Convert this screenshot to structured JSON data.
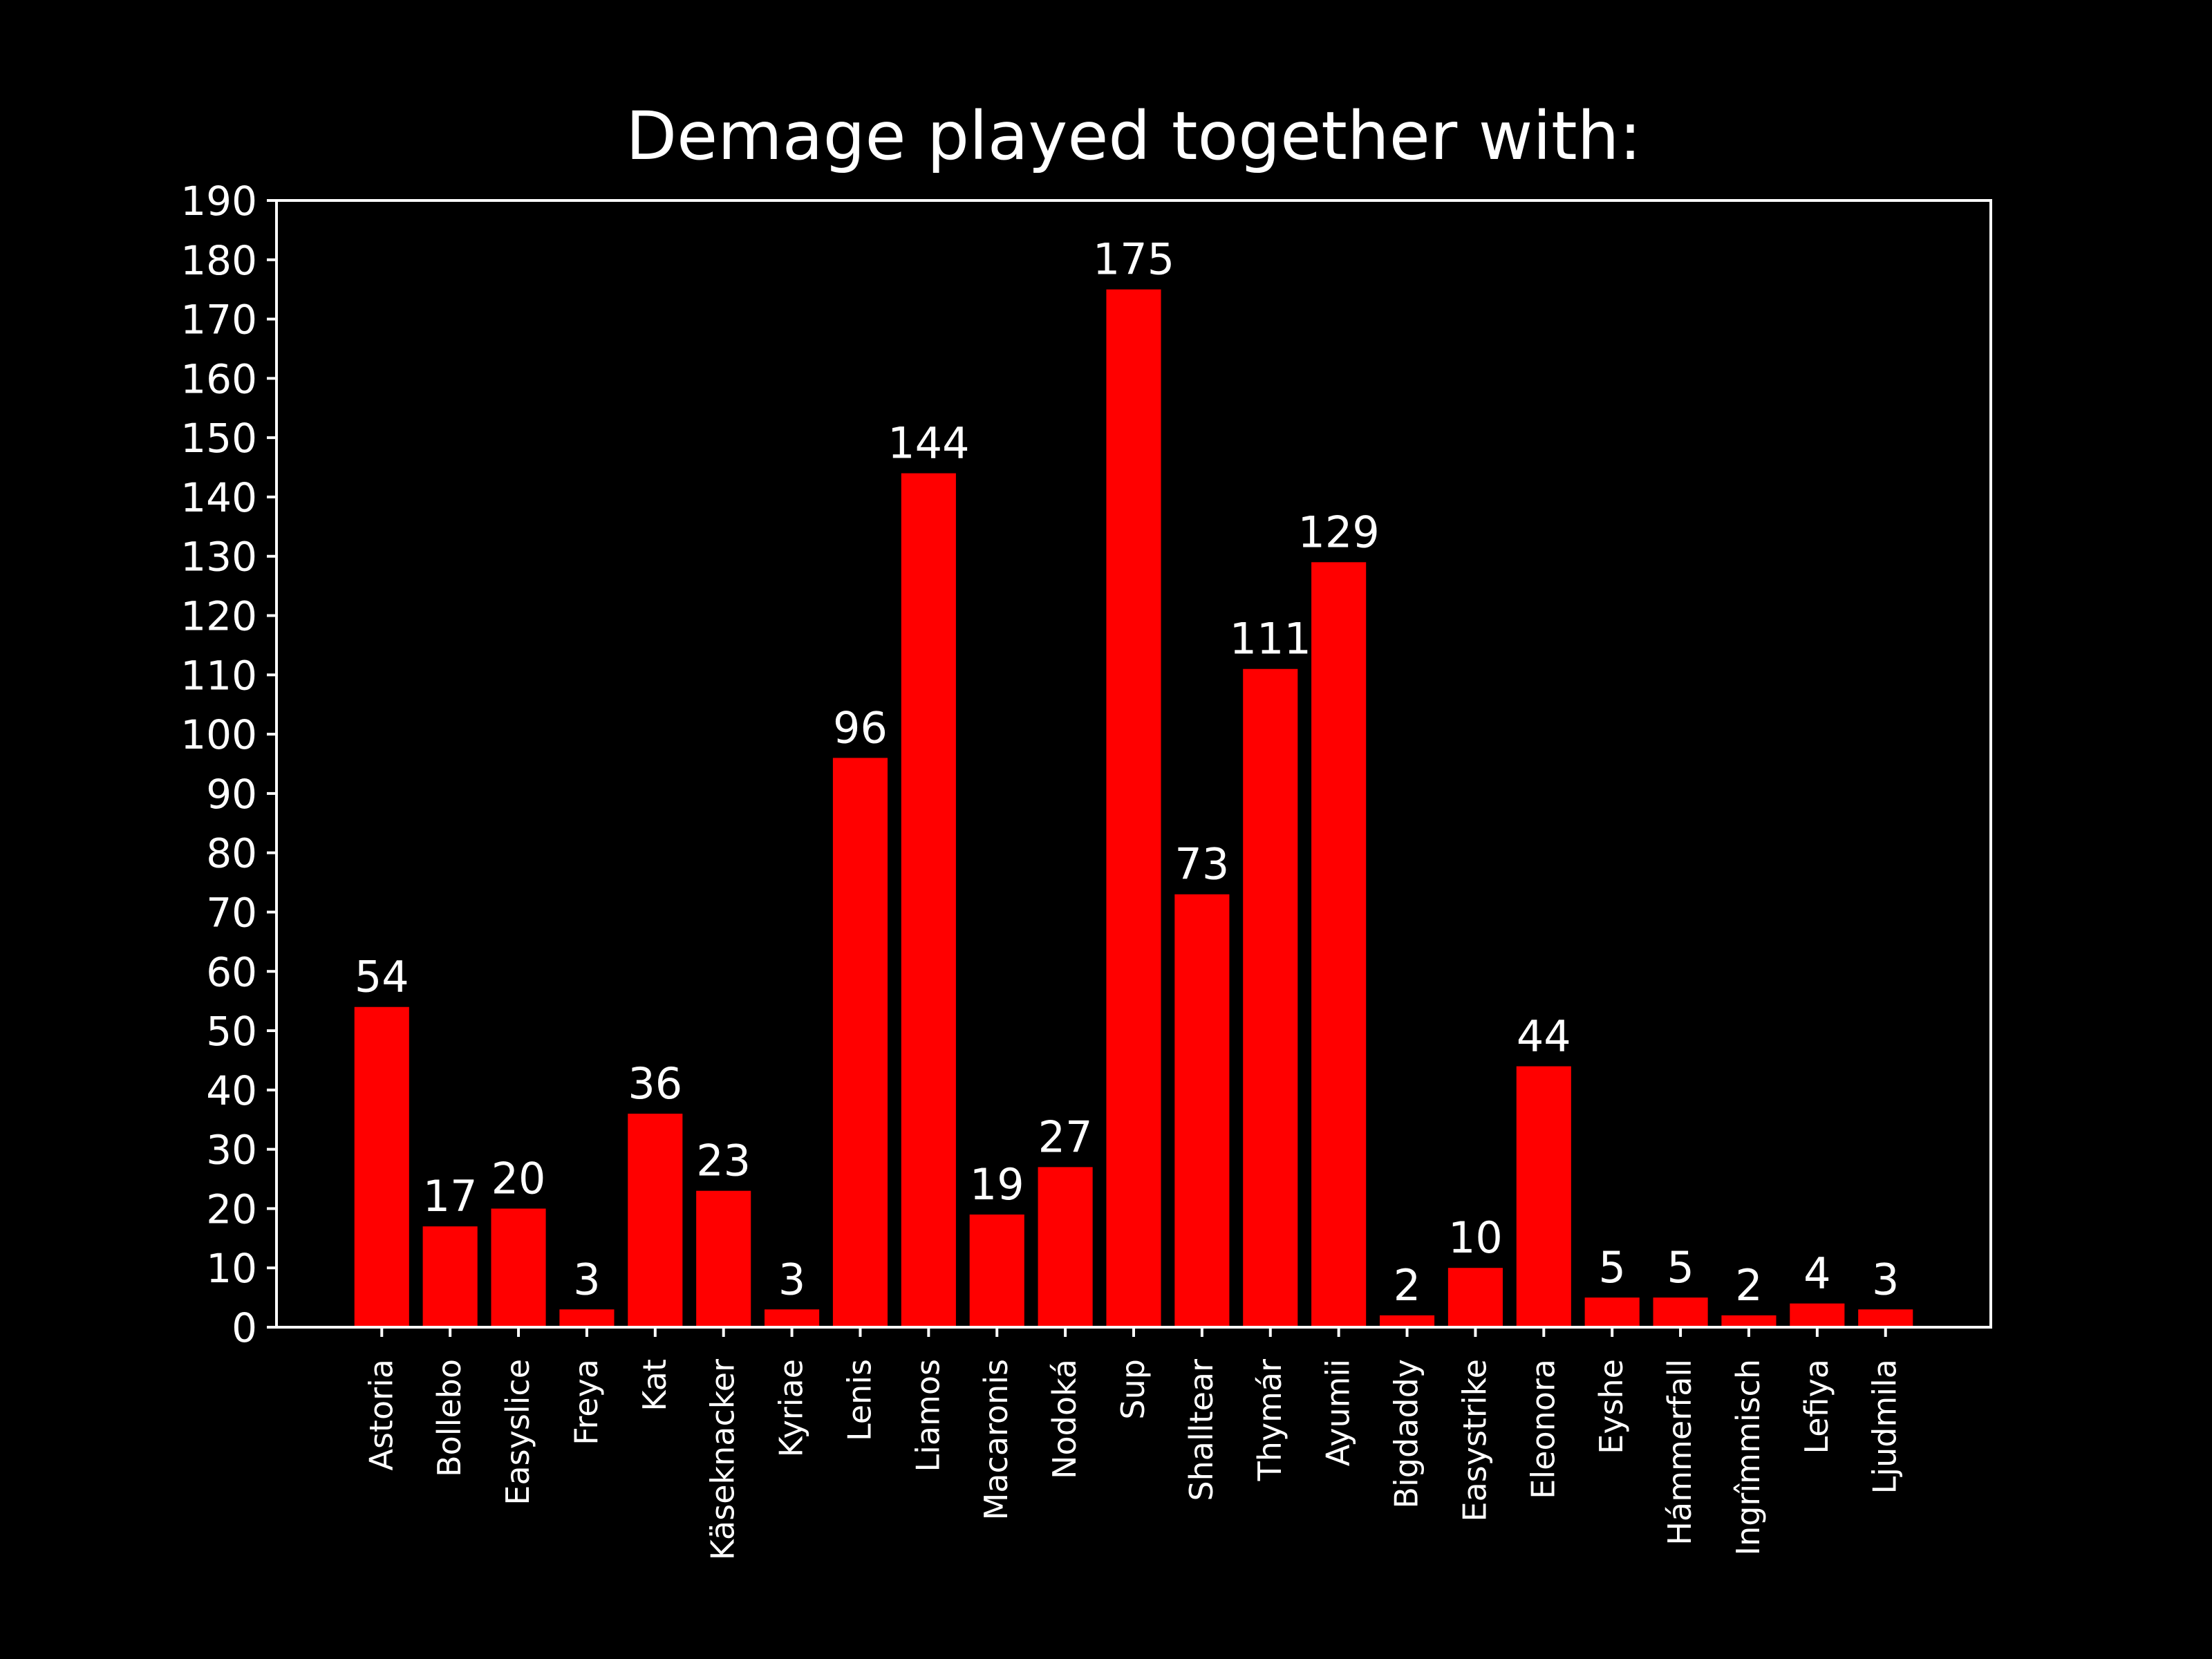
{
  "colors": {
    "background": "#000000",
    "bar": "#ff0000",
    "text": "#ffffff",
    "axis": "#ffffff"
  },
  "chart_data": {
    "type": "bar",
    "title": "Demage played together with:",
    "xlabel": "",
    "ylabel": "",
    "categories": [
      "Astoria",
      "Bollebo",
      "Easyslice",
      "Freya",
      "Kat",
      "Käseknacker",
      "Kyriae",
      "Lenis",
      "Liamos",
      "Macaronis",
      "Nodoká",
      "Sup",
      "Shalltear",
      "Thymár",
      "Ayumii",
      "Bigdaddy",
      "Easystrike",
      "Eleonora",
      "Eyshe",
      "Hámmerfall",
      "Ingrîmmisch",
      "Lefiya",
      "Ljudmila"
    ],
    "values": [
      54,
      17,
      20,
      3,
      36,
      23,
      3,
      96,
      144,
      19,
      27,
      175,
      73,
      111,
      129,
      2,
      10,
      44,
      5,
      5,
      2,
      4,
      3
    ],
    "data_labels": [
      "54",
      "17",
      "20",
      "3",
      "36",
      "23",
      "3",
      "96",
      "144",
      "19",
      "27",
      "175",
      "73",
      "111",
      "129",
      "2",
      "10",
      "44",
      "5",
      "5",
      "2",
      "4",
      "3"
    ],
    "ylim": [
      0,
      190
    ],
    "yticks": [
      0,
      10,
      20,
      30,
      40,
      50,
      60,
      70,
      80,
      90,
      100,
      110,
      120,
      130,
      140,
      150,
      160,
      170,
      180,
      190
    ],
    "xtick_rotation": "vertical",
    "grid": false,
    "legend": "none"
  }
}
